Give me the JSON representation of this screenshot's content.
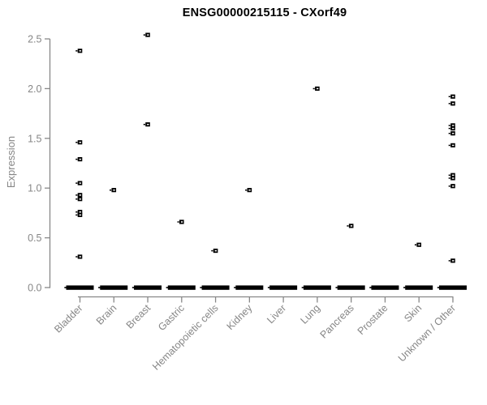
{
  "title": "ENSG00000215115 - CXorf49",
  "chart_data": {
    "type": "scatter",
    "subtype": "strip-plot-by-category",
    "title": "ENSG00000215115 - CXorf49",
    "xlabel": "",
    "ylabel": "Expression",
    "ylim": [
      0.0,
      2.5
    ],
    "yticks": [
      "0.0",
      "0.5",
      "1.0",
      "1.5",
      "2.0",
      "2.5"
    ],
    "grid": false,
    "legend_position": "none",
    "marker": "small-open-square",
    "point_color": "#000000",
    "axis_color": "#888888",
    "tick_label_color": "#868686",
    "categories": [
      "Bladder",
      "Brain",
      "Breast",
      "Gastric",
      "Hematopoietic cells",
      "Kidney",
      "Liver",
      "Lung",
      "Pancreas",
      "Prostate",
      "Skin",
      "Unknown / Other"
    ],
    "series": [
      {
        "category": "Bladder",
        "points": [
          2.38,
          1.46,
          1.29,
          1.05,
          0.93,
          0.89,
          0.76,
          0.73,
          0.31
        ],
        "zero_cluster": true
      },
      {
        "category": "Brain",
        "points": [
          0.98
        ],
        "zero_cluster": true
      },
      {
        "category": "Breast",
        "points": [
          2.54,
          1.64
        ],
        "zero_cluster": true
      },
      {
        "category": "Gastric",
        "points": [
          0.66
        ],
        "zero_cluster": true
      },
      {
        "category": "Hematopoietic cells",
        "points": [
          0.37
        ],
        "zero_cluster": true
      },
      {
        "category": "Kidney",
        "points": [
          0.98
        ],
        "zero_cluster": true
      },
      {
        "category": "Liver",
        "points": [],
        "zero_cluster": true
      },
      {
        "category": "Lung",
        "points": [
          2.0
        ],
        "zero_cluster": true
      },
      {
        "category": "Pancreas",
        "points": [
          0.62
        ],
        "zero_cluster": true
      },
      {
        "category": "Prostate",
        "points": [],
        "zero_cluster": true
      },
      {
        "category": "Skin",
        "points": [
          0.43
        ],
        "zero_cluster": true
      },
      {
        "category": "Unknown / Other",
        "points": [
          1.92,
          1.85,
          1.63,
          1.6,
          1.55,
          1.43,
          1.13,
          1.1,
          1.02,
          0.27
        ],
        "zero_cluster": true
      }
    ]
  }
}
